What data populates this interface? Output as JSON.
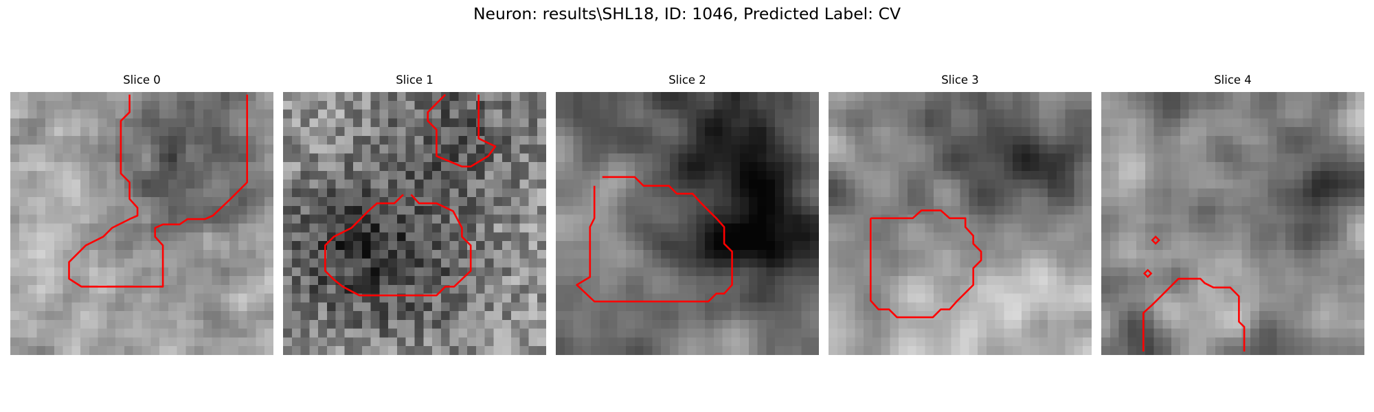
{
  "figure": {
    "title": "Neuron: results\\SHL18, ID: 1046, Predicted Label: CV"
  },
  "colors": {
    "contour": "#ff0000",
    "background": "#ffffff"
  },
  "slices": [
    {
      "title": "Slice 0"
    },
    {
      "title": "Slice 1"
    },
    {
      "title": "Slice 2"
    },
    {
      "title": "Slice 3"
    },
    {
      "title": "Slice 4"
    }
  ]
}
